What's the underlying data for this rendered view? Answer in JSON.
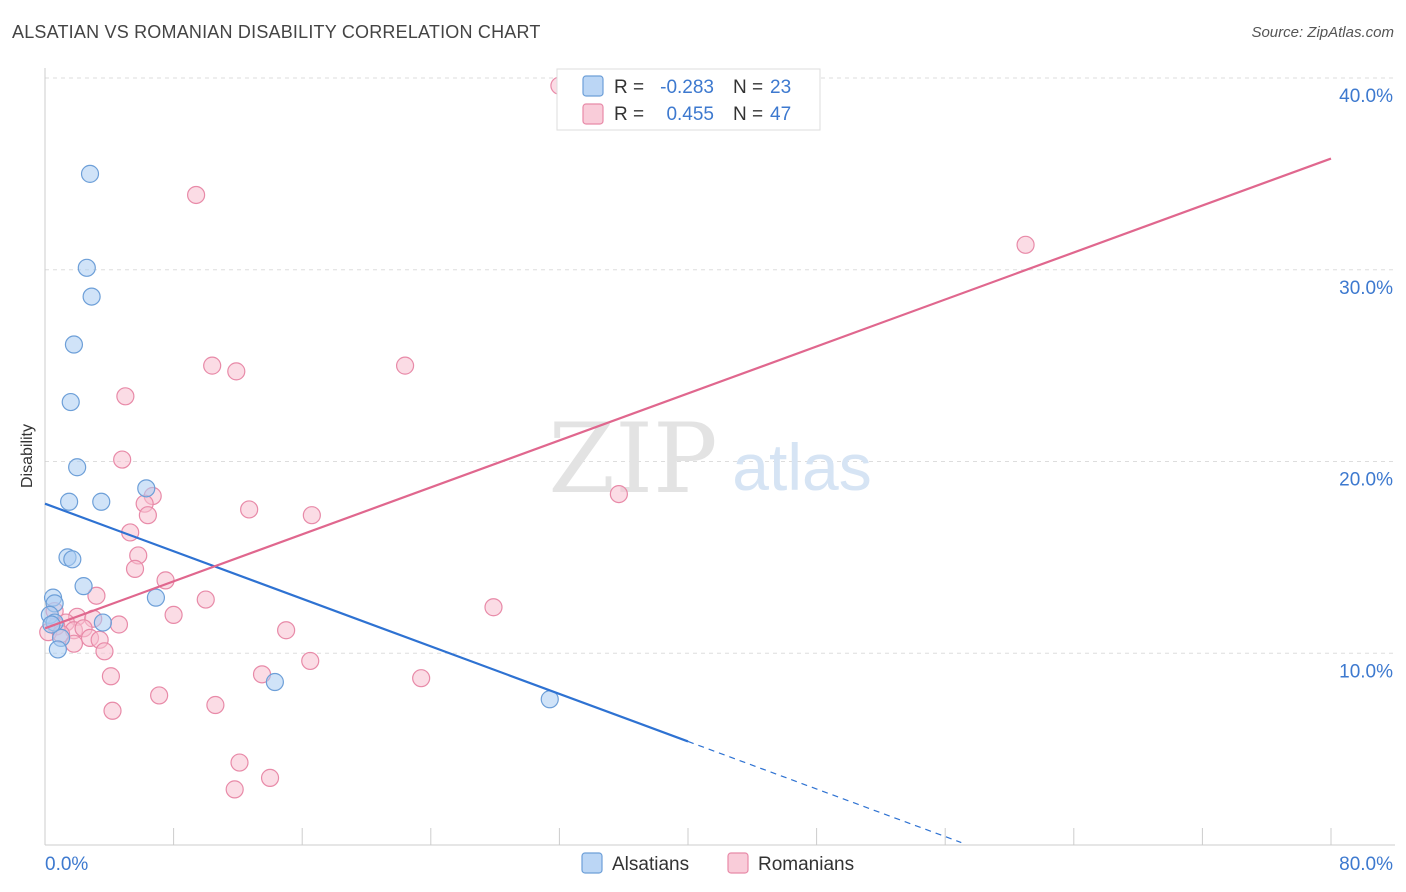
{
  "header": {
    "title": "ALSATIAN VS ROMANIAN DISABILITY CORRELATION CHART",
    "source": "Source: ZipAtlas.com"
  },
  "watermark": {
    "left": "ZIP",
    "right": "atlas"
  },
  "colors": {
    "alsatian_fill": "#aaccf2",
    "alsatian_stroke": "#6d9fd8",
    "alsatian_line": "#2e72d2",
    "romanian_fill": "#f7bfd0",
    "romanian_stroke": "#e88aa8",
    "romanian_line": "#e0678e",
    "tick_text": "#3d79cf",
    "grid": "#dddddd"
  },
  "legend_top": {
    "rows": [
      {
        "r_label": "R =",
        "r_value": "-0.283",
        "n_label": "N =",
        "n_value": "23"
      },
      {
        "r_label": "R =",
        "r_value": "0.455",
        "n_label": "N =",
        "n_value": "47"
      }
    ]
  },
  "legend_bottom": [
    "Alsatians",
    "Romanians"
  ],
  "chart_data": {
    "type": "scatter",
    "title": "ALSATIAN VS ROMANIAN DISABILITY CORRELATION CHART",
    "xlabel": "",
    "ylabel": "Disability",
    "xlim": [
      0,
      80
    ],
    "ylim": [
      0,
      40
    ],
    "x_tick_labels": [
      "0.0%",
      "80.0%"
    ],
    "y_ticks": [
      10,
      20,
      30,
      40
    ],
    "y_tick_labels": [
      "10.0%",
      "20.0%",
      "30.0%",
      "40.0%"
    ],
    "grid": true,
    "legend_position": "top-center",
    "series": [
      {
        "name": "Alsatians",
        "r": -0.283,
        "n": 23,
        "points": [
          [
            2.8,
            35.0
          ],
          [
            2.6,
            30.1
          ],
          [
            2.9,
            28.6
          ],
          [
            1.8,
            26.1
          ],
          [
            1.6,
            23.1
          ],
          [
            2.0,
            19.7
          ],
          [
            1.5,
            17.9
          ],
          [
            3.5,
            17.9
          ],
          [
            6.3,
            18.6
          ],
          [
            1.4,
            15.0
          ],
          [
            1.7,
            14.9
          ],
          [
            2.4,
            13.5
          ],
          [
            0.5,
            12.9
          ],
          [
            0.6,
            12.6
          ],
          [
            6.9,
            12.9
          ],
          [
            0.3,
            12.0
          ],
          [
            0.6,
            11.6
          ],
          [
            3.6,
            11.6
          ],
          [
            1.0,
            10.8
          ],
          [
            0.8,
            10.2
          ],
          [
            14.3,
            8.5
          ],
          [
            31.4,
            7.6
          ],
          [
            0.4,
            11.5
          ]
        ],
        "trend": {
          "x0": 0.0,
          "y0": 17.8,
          "x1": 40.0,
          "y1": 5.4,
          "dash_to_x": 57.0
        }
      },
      {
        "name": "Romanians",
        "r": 0.455,
        "n": 47,
        "points": [
          [
            32.0,
            39.6
          ],
          [
            9.4,
            33.9
          ],
          [
            61.0,
            31.3
          ],
          [
            10.4,
            25.0
          ],
          [
            11.9,
            24.7
          ],
          [
            22.4,
            25.0
          ],
          [
            5.0,
            23.4
          ],
          [
            4.8,
            20.1
          ],
          [
            6.7,
            18.2
          ],
          [
            6.2,
            17.8
          ],
          [
            12.7,
            17.5
          ],
          [
            6.4,
            17.2
          ],
          [
            16.6,
            17.2
          ],
          [
            35.7,
            18.3
          ],
          [
            5.3,
            16.3
          ],
          [
            5.8,
            15.1
          ],
          [
            5.6,
            14.4
          ],
          [
            7.5,
            13.8
          ],
          [
            3.2,
            13.0
          ],
          [
            10.0,
            12.8
          ],
          [
            27.9,
            12.4
          ],
          [
            8.0,
            12.0
          ],
          [
            0.6,
            12.2
          ],
          [
            2.0,
            11.9
          ],
          [
            3.0,
            11.8
          ],
          [
            4.6,
            11.5
          ],
          [
            1.3,
            11.6
          ],
          [
            0.7,
            11.4
          ],
          [
            1.8,
            11.2
          ],
          [
            2.4,
            11.3
          ],
          [
            15.0,
            11.2
          ],
          [
            0.2,
            11.1
          ],
          [
            1.0,
            11.0
          ],
          [
            2.8,
            10.8
          ],
          [
            3.4,
            10.7
          ],
          [
            1.8,
            10.5
          ],
          [
            3.7,
            10.1
          ],
          [
            16.5,
            9.6
          ],
          [
            4.1,
            8.8
          ],
          [
            13.5,
            8.9
          ],
          [
            23.4,
            8.7
          ],
          [
            7.1,
            7.8
          ],
          [
            4.2,
            7.0
          ],
          [
            10.6,
            7.3
          ],
          [
            12.1,
            4.3
          ],
          [
            14.0,
            3.5
          ],
          [
            11.8,
            2.9
          ]
        ],
        "trend": {
          "x0": 0.0,
          "y0": 11.3,
          "x1": 80.0,
          "y1": 35.8
        }
      }
    ]
  }
}
